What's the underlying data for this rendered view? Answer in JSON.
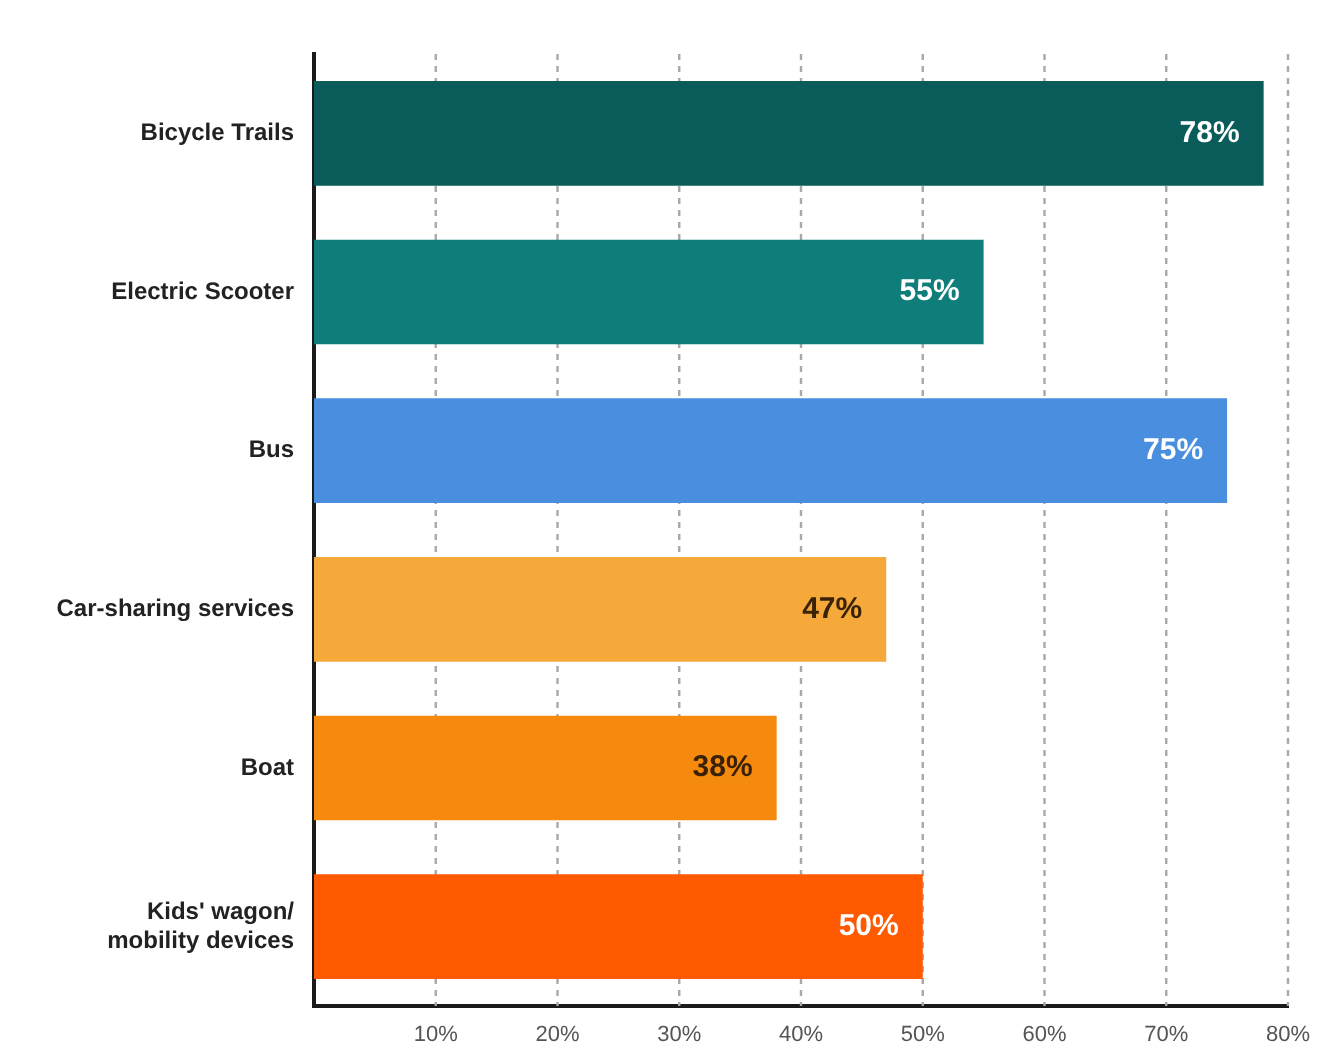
{
  "chart_data": {
    "type": "bar",
    "orientation": "horizontal",
    "categories": [
      "Bicycle Trails",
      "Electric Scooter",
      "Bus",
      "Car-sharing services",
      "Boat",
      "Kids' wagon/\nmobility devices"
    ],
    "values": [
      78,
      55,
      75,
      47,
      38,
      50
    ],
    "colors": [
      "#0a5c5a",
      "#0f7e7b",
      "#4a8ee0",
      "#f5a93b",
      "#f58a0e",
      "#ff5a00"
    ],
    "value_labels": [
      "78%",
      "55%",
      "75%",
      "47%",
      "38%",
      "50%"
    ],
    "xlim": [
      0,
      80
    ],
    "xticks": [
      {
        "value": 10,
        "label": "10%"
      },
      {
        "value": 20,
        "label": "20%"
      },
      {
        "value": 30,
        "label": "30%"
      },
      {
        "value": 40,
        "label": "40%"
      },
      {
        "value": 50,
        "label": "50%"
      },
      {
        "value": 60,
        "label": "60%"
      },
      {
        "value": 70,
        "label": "70%"
      },
      {
        "value": 80,
        "label": "80%"
      }
    ],
    "grid": "x"
  }
}
